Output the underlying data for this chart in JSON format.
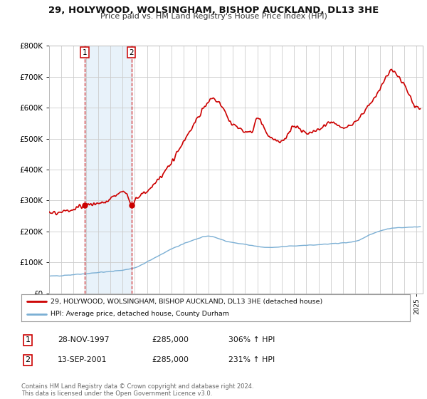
{
  "title": "29, HOLYWOOD, WOLSINGHAM, BISHOP AUCKLAND, DL13 3HE",
  "subtitle": "Price paid vs. HM Land Registry's House Price Index (HPI)",
  "ylim": [
    0,
    800000
  ],
  "xlim_start": 1995.0,
  "xlim_end": 2025.5,
  "background_color": "#ffffff",
  "grid_color": "#cccccc",
  "sale1_date": 1997.91,
  "sale1_price": 285000,
  "sale2_date": 2001.71,
  "sale2_price": 285000,
  "sale_color": "#cc0000",
  "hpi_color": "#7bafd4",
  "legend_label1": "29, HOLYWOOD, WOLSINGHAM, BISHOP AUCKLAND, DL13 3HE (detached house)",
  "legend_label2": "HPI: Average price, detached house, County Durham",
  "table_row1": [
    "1",
    "28-NOV-1997",
    "£285,000",
    "306% ↑ HPI"
  ],
  "table_row2": [
    "2",
    "13-SEP-2001",
    "£285,000",
    "231% ↑ HPI"
  ],
  "footer": "Contains HM Land Registry data © Crown copyright and database right 2024.\nThis data is licensed under the Open Government Licence v3.0.",
  "shaded_region_color": "#daeaf7",
  "shaded_region_alpha": 0.6,
  "hpi_knots_t": [
    1995.0,
    1997.0,
    1999.0,
    2001.0,
    2002.0,
    2003.5,
    2005.0,
    2007.0,
    2008.0,
    2009.5,
    2011.0,
    2013.0,
    2014.5,
    2016.0,
    2018.0,
    2020.0,
    2021.5,
    2023.0,
    2025.3
  ],
  "hpi_knots_v": [
    55000,
    60000,
    67000,
    75000,
    83000,
    112000,
    143000,
    175000,
    185000,
    168000,
    158000,
    148000,
    152000,
    155000,
    160000,
    168000,
    195000,
    210000,
    215000
  ],
  "red_knots_t": [
    1995.0,
    1996.0,
    1997.0,
    1997.91,
    1998.5,
    1999.5,
    2000.5,
    2001.2,
    2001.71,
    2002.2,
    2003.0,
    2004.5,
    2006.0,
    2007.5,
    2008.3,
    2009.0,
    2010.0,
    2011.5,
    2012.0,
    2013.0,
    2014.0,
    2015.0,
    2016.0,
    2017.0,
    2018.0,
    2019.0,
    2020.0,
    2021.0,
    2022.0,
    2022.5,
    2023.0,
    2023.5,
    2024.0,
    2024.5,
    2025.3
  ],
  "red_knots_v": [
    262000,
    263000,
    268000,
    285000,
    288000,
    295000,
    318000,
    330000,
    285000,
    310000,
    330000,
    395000,
    490000,
    590000,
    630000,
    610000,
    545000,
    520000,
    565000,
    505000,
    490000,
    540000,
    520000,
    530000,
    555000,
    535000,
    555000,
    600000,
    660000,
    700000,
    720000,
    700000,
    680000,
    630000,
    590000
  ]
}
